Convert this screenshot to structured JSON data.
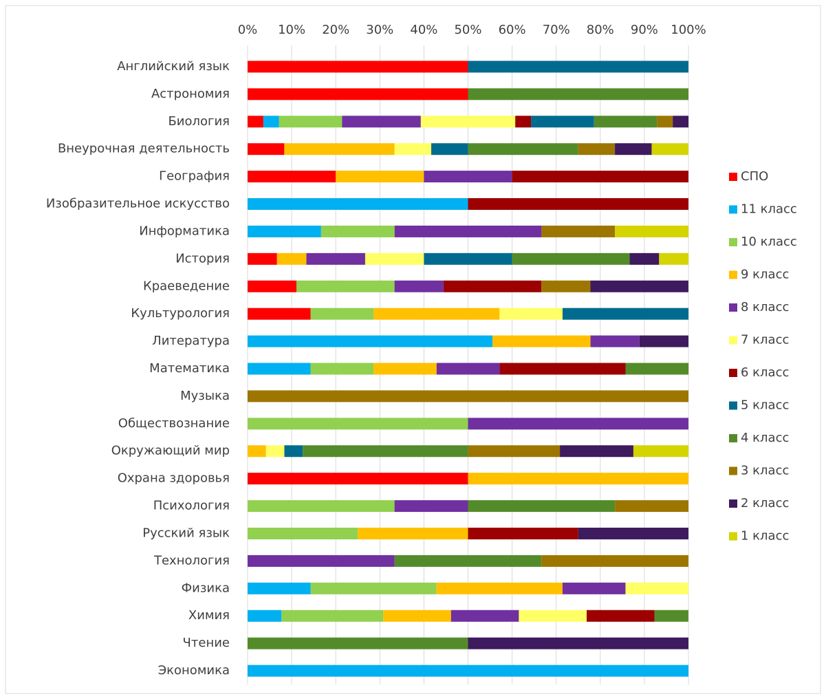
{
  "chart_data": {
    "type": "stacked_barh",
    "categories": [
      "Английский язык",
      "Астрономия",
      "Биология",
      "Внеурочная деятельность",
      "География",
      "Изобразительное искусство",
      "Информатика",
      "История",
      "Краеведение",
      "Культурология",
      "Литература",
      "Математика",
      "Музыка",
      "Обществознание",
      "Окружающий мир",
      "Охрана здоровья",
      "Психология",
      "Русский язык",
      "Технология",
      "Физика",
      "Химия",
      "Чтение",
      "Экономика"
    ],
    "xlim": [
      0,
      100
    ],
    "xticks": [
      {
        "value": 0,
        "label": "0%"
      },
      {
        "value": 10,
        "label": "10%"
      },
      {
        "value": 20,
        "label": "20%"
      },
      {
        "value": 30,
        "label": "30%"
      },
      {
        "value": 40,
        "label": "40%"
      },
      {
        "value": 50,
        "label": "50%"
      },
      {
        "value": 60,
        "label": "60%"
      },
      {
        "value": 70,
        "label": "70%"
      },
      {
        "value": 80,
        "label": "80%"
      },
      {
        "value": 90,
        "label": "90%"
      },
      {
        "value": 100,
        "label": "100%"
      }
    ],
    "grid": true,
    "legend": "right",
    "series": [
      {
        "name": "СПО",
        "color": "#ff0000",
        "values": [
          50,
          50,
          3.57,
          8.33,
          20,
          0,
          0,
          6.67,
          11.11,
          14.29,
          0,
          0,
          0,
          0,
          0,
          50,
          0,
          0,
          0,
          0,
          0,
          0,
          0
        ]
      },
      {
        "name": "11 класс",
        "color": "#00b0f0",
        "values": [
          0,
          0,
          3.57,
          0,
          0,
          50,
          16.67,
          0,
          0,
          0,
          55.56,
          14.29,
          0,
          0,
          0,
          0,
          0,
          0,
          0,
          14.29,
          7.69,
          0,
          100
        ]
      },
      {
        "name": "10 класс",
        "color": "#92d050",
        "values": [
          0,
          0,
          14.29,
          0,
          0,
          0,
          16.67,
          0,
          22.22,
          14.29,
          0,
          14.29,
          0,
          50,
          0,
          0,
          33.33,
          25,
          0,
          28.57,
          23.08,
          0,
          0
        ]
      },
      {
        "name": "9 класс",
        "color": "#ffc000",
        "values": [
          0,
          0,
          0,
          25,
          20,
          0,
          0,
          6.67,
          0,
          28.57,
          22.22,
          14.29,
          0,
          0,
          4.17,
          50,
          0,
          25,
          0,
          28.57,
          15.38,
          0,
          0
        ]
      },
      {
        "name": "8 класс",
        "color": "#7030a0",
        "values": [
          0,
          0,
          17.86,
          0,
          20,
          0,
          33.33,
          13.33,
          11.11,
          0,
          11.11,
          14.29,
          0,
          50,
          0,
          0,
          16.67,
          0,
          33.33,
          14.29,
          15.38,
          0,
          0
        ]
      },
      {
        "name": "7 класс",
        "color": "#ffff66",
        "values": [
          0,
          0,
          21.43,
          8.33,
          0,
          0,
          0,
          13.33,
          0,
          14.29,
          0,
          0,
          0,
          0,
          4.17,
          0,
          0,
          0,
          0,
          14.29,
          15.38,
          0,
          0
        ]
      },
      {
        "name": "6 класс",
        "color": "#9c0000",
        "values": [
          0,
          0,
          3.57,
          0,
          40,
          50,
          0,
          0,
          22.22,
          0,
          0,
          28.57,
          0,
          0,
          0,
          0,
          0,
          25,
          0,
          0,
          15.38,
          0,
          0
        ]
      },
      {
        "name": "5 класс",
        "color": "#006b8f",
        "values": [
          50,
          0,
          14.29,
          8.33,
          0,
          0,
          0,
          20,
          0,
          28.57,
          0,
          0,
          0,
          0,
          4.17,
          0,
          0,
          0,
          0,
          0,
          0,
          0,
          0
        ]
      },
      {
        "name": "4 класс",
        "color": "#548b2a",
        "values": [
          0,
          50,
          14.29,
          25,
          0,
          0,
          0,
          26.67,
          0,
          0,
          0,
          14.29,
          0,
          0,
          37.5,
          0,
          33.33,
          0,
          33.33,
          0,
          7.69,
          50,
          0
        ]
      },
      {
        "name": "3 класс",
        "color": "#9c7600",
        "values": [
          0,
          0,
          3.57,
          8.33,
          0,
          0,
          16.67,
          0,
          11.11,
          0,
          0,
          0,
          100,
          0,
          20.83,
          0,
          16.67,
          0,
          33.33,
          0,
          0,
          0,
          0
        ]
      },
      {
        "name": "2 класс",
        "color": "#3e1a5e",
        "values": [
          0,
          0,
          3.57,
          8.33,
          0,
          0,
          0,
          6.67,
          22.22,
          0,
          11.11,
          0,
          0,
          0,
          16.67,
          0,
          0,
          25,
          0,
          0,
          0,
          50,
          0
        ]
      },
      {
        "name": "1 класс",
        "color": "#d4d400",
        "values": [
          0,
          0,
          0,
          8.33,
          0,
          0,
          16.67,
          6.67,
          0,
          0,
          0,
          0,
          0,
          0,
          12.5,
          0,
          0,
          0,
          0,
          0,
          0,
          0,
          0
        ]
      }
    ]
  }
}
